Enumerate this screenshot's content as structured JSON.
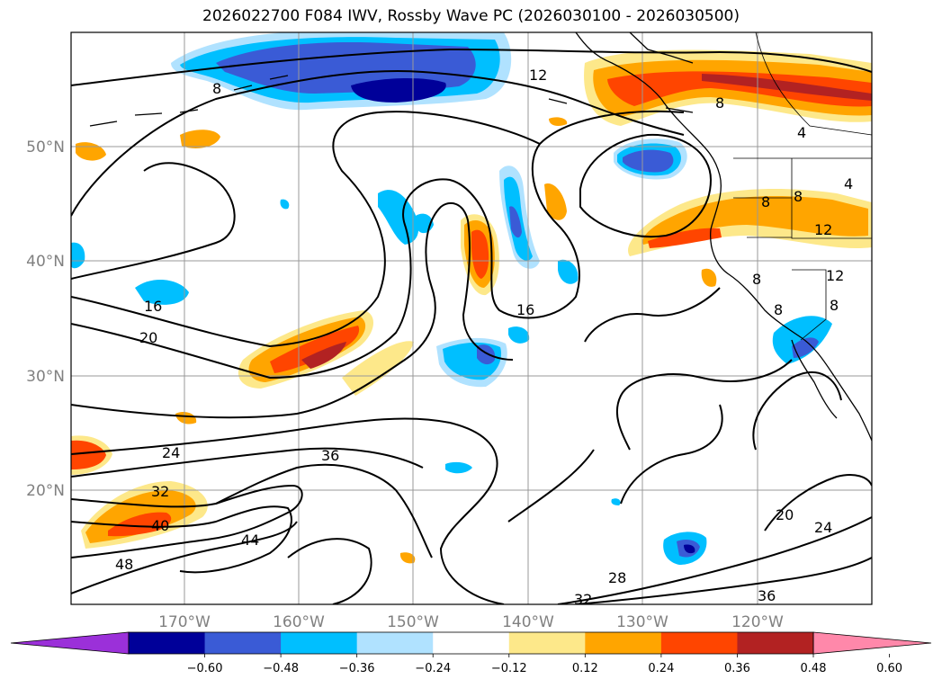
{
  "title": "2026022700 F084 IWV, Rossby Wave PC (2026030100 - 2026030500)",
  "lat_labels": [
    "50°N",
    "40°N",
    "30°N",
    "20°N"
  ],
  "lon_labels": [
    "170°W",
    "160°W",
    "150°W",
    "140°W",
    "130°W",
    "120°W"
  ],
  "contour_labels": [
    "8",
    "12",
    "16",
    "16",
    "20",
    "24",
    "32",
    "40",
    "44",
    "48",
    "36",
    "28",
    "32",
    "36",
    "20",
    "24",
    "8",
    "4",
    "8",
    "12",
    "8",
    "12",
    "8",
    "8",
    "8",
    "4"
  ],
  "colorbar": {
    "colors": [
      "#9b30d9",
      "#000099",
      "#3a5bd6",
      "#00bfff",
      "#b0e2ff",
      "#ffffff",
      "#fde88a",
      "#ffa500",
      "#ff4500",
      "#b22222",
      "#ff88aa"
    ],
    "tick_labels": [
      "−0.60",
      "−0.48",
      "−0.36",
      "−0.24",
      "−0.12",
      "0.12",
      "0.24",
      "0.36",
      "0.48",
      "0.60"
    ]
  }
}
